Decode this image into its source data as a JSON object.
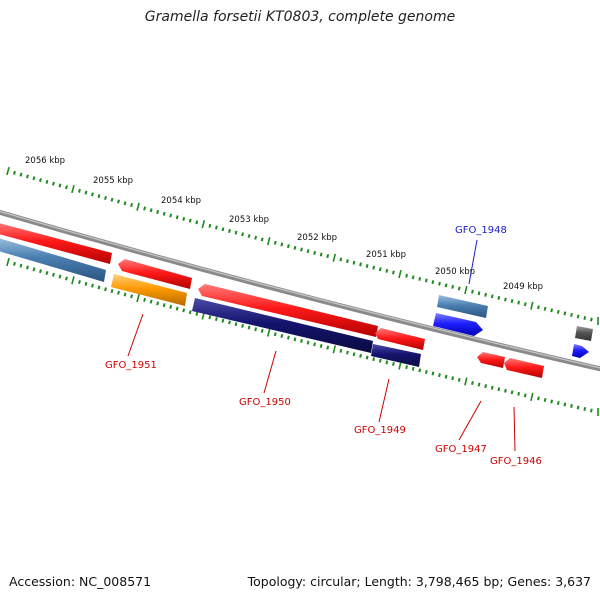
{
  "title": "Gramella forsetii KT0803, complete genome",
  "footer": {
    "accession": "Accession: NC_008571",
    "summary": "Topology: circular; Length: 3,798,465 bp; Genes: 3,637"
  },
  "scale_labels": [
    "2056 kbp",
    "2055 kbp",
    "2054 kbp",
    "2053 kbp",
    "2052 kbp",
    "2051 kbp",
    "2050 kbp",
    "2049 kbp"
  ],
  "colors": {
    "backbone": "#7a7a7a",
    "tick_major": "#1e8a1e",
    "tick_minor": "#2f8f2f",
    "red_gene": "#ff1a1a",
    "steelblue_gene": "#4a7fb0",
    "orange_gene": "#ff9a00",
    "navy_gene": "#14146e",
    "blue_gene": "#1f1fff",
    "gray_gene": "#555555",
    "label_red": "#cc0000",
    "label_blue": "#1a1acc"
  },
  "gene_labels": [
    {
      "text": "GFO_1948",
      "color": "blue"
    },
    {
      "text": "GFO_1951",
      "color": "red"
    },
    {
      "text": "GFO_1950",
      "color": "red"
    },
    {
      "text": "GFO_1949",
      "color": "red"
    },
    {
      "text": "GFO_1947",
      "color": "red"
    },
    {
      "text": "GFO_1946",
      "color": "red"
    }
  ]
}
